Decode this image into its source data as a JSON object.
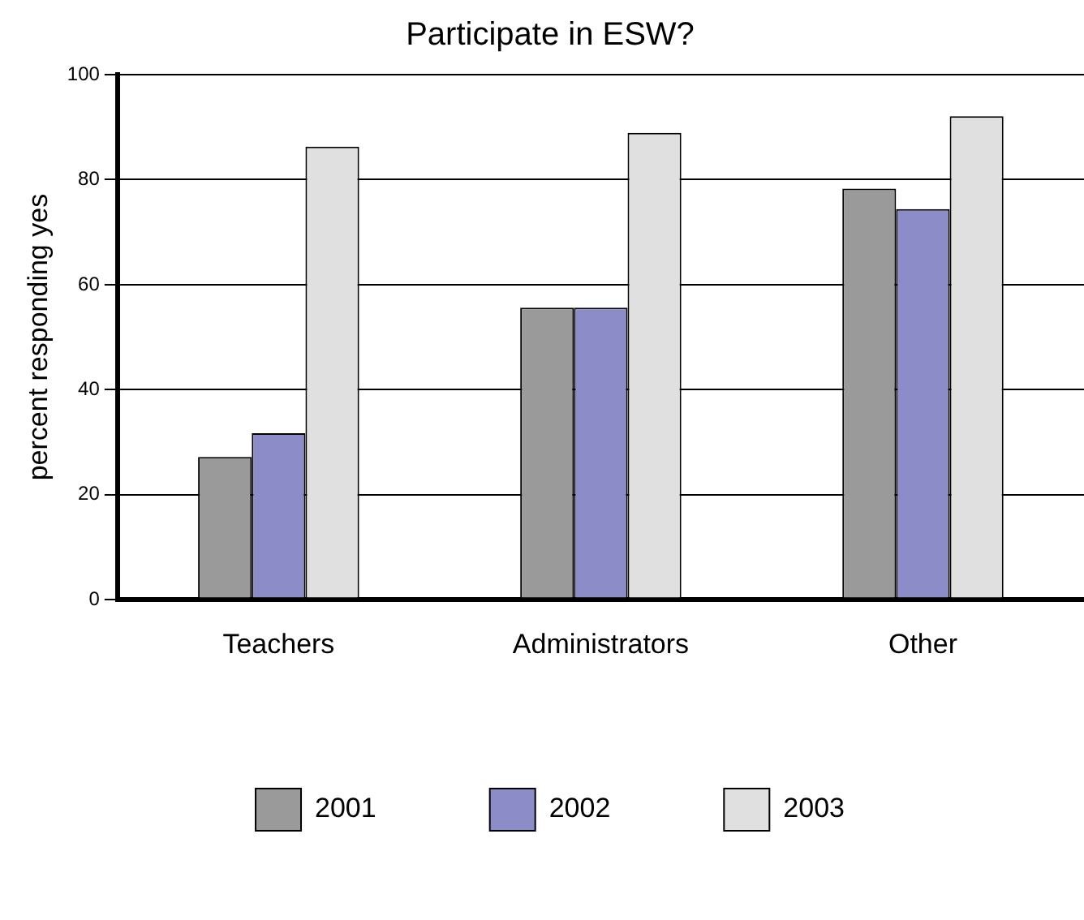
{
  "chart_data": {
    "type": "bar",
    "title": "Participate in ESW?",
    "ylabel": "percent responding yes",
    "categories": [
      "Teachers",
      "Administrators",
      "Other"
    ],
    "series": [
      {
        "name": "2001",
        "color": "#9a9a9a",
        "values": [
          27.2,
          55.6,
          78.3
        ]
      },
      {
        "name": "2002",
        "color": "#8c8cc8",
        "values": [
          31.7,
          55.6,
          74.4
        ]
      },
      {
        "name": "2003",
        "color": "#e0e0e0",
        "values": [
          86.3,
          88.9,
          92.1
        ]
      }
    ],
    "ylim": [
      0,
      100
    ],
    "yticks": [
      0,
      20,
      40,
      60,
      80,
      100
    ],
    "grid": "y",
    "legend": "bottom"
  }
}
